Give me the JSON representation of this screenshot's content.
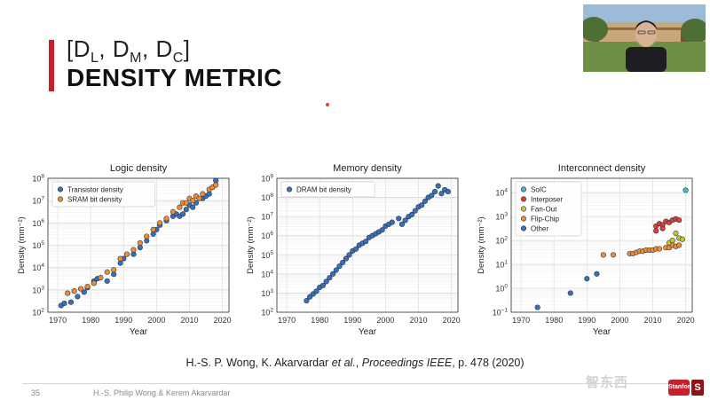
{
  "slide": {
    "title_parts": {
      "d1": "D",
      "s1": "L",
      "d2": "D",
      "s2": "M",
      "d3": "D",
      "s3": "C"
    },
    "title_main": "DENSITY METRIC",
    "citation": {
      "prefix": "H.-S. P. Wong, K. Akarvardar ",
      "etal": "et al.",
      "mid": ", ",
      "journal": "Proceedings IEEE",
      "suffix": ", p. 478 (2020)"
    },
    "footer": {
      "page": "35",
      "authors": "H.-S. Philip Wong & Kerem Akarvardar"
    },
    "watermark": {
      "text": "智东西",
      "badge": "Stanford",
      "letter": "S"
    }
  },
  "colors": {
    "accent": "#c8202a",
    "blue": "#3b70b4",
    "orange": "#ef8c34",
    "red": "#d84038",
    "yellow": "#c9c52f",
    "cyan": "#45b9cc"
  },
  "chart_data": [
    {
      "type": "scatter",
      "title": "Logic density",
      "xlabel": "Year",
      "ylabel": "Density (mm⁻²)",
      "log_y": true,
      "xlim": [
        1967,
        2022
      ],
      "ylim_exp": [
        2,
        8
      ],
      "xticks": [
        1970,
        1980,
        1990,
        2000,
        2010,
        2020
      ],
      "yticks": [
        {
          "base": "10",
          "exp": "2"
        },
        {
          "base": "10",
          "exp": "3"
        },
        {
          "base": "10",
          "exp": "4"
        },
        {
          "base": "10",
          "exp": "5"
        },
        {
          "base": "10",
          "exp": "6"
        },
        {
          "base": "10",
          "exp": "7"
        },
        {
          "base": "10",
          "exp": "8"
        }
      ],
      "legend_position": "top-left",
      "series": [
        {
          "name": "Transistor density",
          "color": "#3b70b4",
          "points": [
            [
              1971,
              2.3
            ],
            [
              1972,
              2.4
            ],
            [
              1974,
              2.45
            ],
            [
              1976,
              2.7
            ],
            [
              1978,
              2.9
            ],
            [
              1979,
              3.1
            ],
            [
              1981,
              3.4
            ],
            [
              1982,
              3.5
            ],
            [
              1985,
              3.4
            ],
            [
              1987,
              3.7
            ],
            [
              1989,
              4.2
            ],
            [
              1990,
              4.4
            ],
            [
              1993,
              4.6
            ],
            [
              1995,
              4.9
            ],
            [
              1997,
              5.2
            ],
            [
              1999,
              5.5
            ],
            [
              2000,
              5.7
            ],
            [
              2001,
              5.9
            ],
            [
              2003,
              6.1
            ],
            [
              2005,
              6.3
            ],
            [
              2006,
              6.4
            ],
            [
              2007,
              6.3
            ],
            [
              2008,
              6.4
            ],
            [
              2009,
              6.6
            ],
            [
              2010,
              6.8
            ],
            [
              2011,
              6.7
            ],
            [
              2012,
              6.9
            ],
            [
              2014,
              7.1
            ],
            [
              2015,
              7.2
            ],
            [
              2016,
              7.3
            ],
            [
              2017,
              7.6
            ],
            [
              2018,
              7.9
            ]
          ]
        },
        {
          "name": "SRAM bit density",
          "color": "#ef8c34",
          "points": [
            [
              1973,
              2.85
            ],
            [
              1975,
              2.95
            ],
            [
              1977,
              3.05
            ],
            [
              1979,
              3.15
            ],
            [
              1981,
              3.3
            ],
            [
              1983,
              3.55
            ],
            [
              1985,
              3.8
            ],
            [
              1987,
              3.9
            ],
            [
              1989,
              4.4
            ],
            [
              1991,
              4.6
            ],
            [
              1993,
              4.8
            ],
            [
              1995,
              5.1
            ],
            [
              1997,
              5.4
            ],
            [
              1999,
              5.7
            ],
            [
              2001,
              6.0
            ],
            [
              2003,
              6.2
            ],
            [
              2005,
              6.5
            ],
            [
              2007,
              6.7
            ],
            [
              2008,
              6.9
            ],
            [
              2009,
              6.9
            ],
            [
              2010,
              7.1
            ],
            [
              2011,
              7.0
            ],
            [
              2012,
              7.2
            ],
            [
              2013,
              7.1
            ],
            [
              2014,
              7.3
            ],
            [
              2016,
              7.5
            ],
            [
              2017,
              7.6
            ],
            [
              2018,
              7.7
            ]
          ]
        }
      ]
    },
    {
      "type": "scatter",
      "title": "Memory density",
      "xlabel": "Year",
      "ylabel": "Density (mm⁻²)",
      "log_y": true,
      "xlim": [
        1967,
        2022
      ],
      "ylim_exp": [
        2,
        9
      ],
      "xticks": [
        1970,
        1980,
        1990,
        2000,
        2010,
        2020
      ],
      "yticks": [
        {
          "base": "10",
          "exp": "2"
        },
        {
          "base": "10",
          "exp": "3"
        },
        {
          "base": "10",
          "exp": "4"
        },
        {
          "base": "10",
          "exp": "5"
        },
        {
          "base": "10",
          "exp": "6"
        },
        {
          "base": "10",
          "exp": "7"
        },
        {
          "base": "10",
          "exp": "8"
        },
        {
          "base": "10",
          "exp": "9"
        }
      ],
      "legend_position": "top-left",
      "series": [
        {
          "name": "DRAM bit density",
          "color": "#3b70b4",
          "points": [
            [
              1976,
              2.6
            ],
            [
              1977,
              2.8
            ],
            [
              1978,
              2.95
            ],
            [
              1979,
              3.1
            ],
            [
              1980,
              3.3
            ],
            [
              1981,
              3.4
            ],
            [
              1982,
              3.6
            ],
            [
              1983,
              3.8
            ],
            [
              1984,
              4.0
            ],
            [
              1985,
              4.2
            ],
            [
              1986,
              4.4
            ],
            [
              1987,
              4.6
            ],
            [
              1988,
              4.8
            ],
            [
              1989,
              5.0
            ],
            [
              1990,
              5.2
            ],
            [
              1991,
              5.3
            ],
            [
              1992,
              5.5
            ],
            [
              1993,
              5.6
            ],
            [
              1994,
              5.7
            ],
            [
              1995,
              5.9
            ],
            [
              1996,
              6.0
            ],
            [
              1997,
              6.1
            ],
            [
              1998,
              6.2
            ],
            [
              1999,
              6.3
            ],
            [
              2000,
              6.5
            ],
            [
              2001,
              6.6
            ],
            [
              2002,
              6.7
            ],
            [
              2004,
              6.9
            ],
            [
              2005,
              6.6
            ],
            [
              2006,
              6.8
            ],
            [
              2007,
              7.0
            ],
            [
              2008,
              7.1
            ],
            [
              2009,
              7.3
            ],
            [
              2010,
              7.5
            ],
            [
              2011,
              7.6
            ],
            [
              2012,
              7.8
            ],
            [
              2013,
              8.0
            ],
            [
              2014,
              8.1
            ],
            [
              2015,
              8.3
            ],
            [
              2016,
              8.6
            ],
            [
              2017,
              8.2
            ],
            [
              2018,
              8.4
            ],
            [
              2019,
              8.3
            ]
          ]
        }
      ]
    },
    {
      "type": "scatter",
      "title": "Interconnect density",
      "xlabel": "Year",
      "ylabel": "Density (mm⁻²)",
      "log_y": true,
      "xlim": [
        1967,
        2022
      ],
      "ylim_exp": [
        -1,
        4.6
      ],
      "xticks": [
        1970,
        1980,
        1990,
        2000,
        2010,
        2020
      ],
      "yticks": [
        {
          "base": "10",
          "exp": "−1"
        },
        {
          "base": "10",
          "exp": "0"
        },
        {
          "base": "10",
          "exp": "1"
        },
        {
          "base": "10",
          "exp": "2"
        },
        {
          "base": "10",
          "exp": "3"
        },
        {
          "base": "10",
          "exp": "4"
        }
      ],
      "legend_position": "top-left",
      "series": [
        {
          "name": "SoIC",
          "color": "#45b9cc",
          "points": [
            [
              2020,
              4.1
            ]
          ]
        },
        {
          "name": "Interposer",
          "color": "#d84038",
          "points": [
            [
              2011,
              2.6
            ],
            [
              2012,
              2.7
            ],
            [
              2013,
              2.65
            ],
            [
              2014,
              2.8
            ],
            [
              2015,
              2.75
            ],
            [
              2016,
              2.85
            ],
            [
              2017,
              2.9
            ],
            [
              2018,
              2.85
            ],
            [
              2011,
              2.4
            ],
            [
              2013,
              2.5
            ]
          ]
        },
        {
          "name": "Fan-Out",
          "color": "#c9c52f",
          "points": [
            [
              2015,
              1.9
            ],
            [
              2016,
              2.0
            ],
            [
              2017,
              2.3
            ],
            [
              2018,
              2.1
            ],
            [
              2019,
              2.05
            ]
          ]
        },
        {
          "name": "Flip-Chip",
          "color": "#ef8c34",
          "points": [
            [
              1995,
              1.4
            ],
            [
              1998,
              1.4
            ],
            [
              2003,
              1.45
            ],
            [
              2004,
              1.45
            ],
            [
              2005,
              1.5
            ],
            [
              2006,
              1.55
            ],
            [
              2007,
              1.55
            ],
            [
              2008,
              1.6
            ],
            [
              2009,
              1.6
            ],
            [
              2010,
              1.6
            ],
            [
              2011,
              1.65
            ],
            [
              2012,
              1.65
            ],
            [
              2014,
              1.7
            ],
            [
              2015,
              1.7
            ],
            [
              2016,
              1.8
            ],
            [
              2017,
              1.75
            ],
            [
              2018,
              1.8
            ]
          ]
        },
        {
          "name": "Other",
          "color": "#3b70b4",
          "points": [
            [
              1975,
              -0.8
            ],
            [
              1985,
              -0.2
            ],
            [
              1990,
              0.4
            ],
            [
              1993,
              0.6
            ]
          ]
        }
      ]
    }
  ]
}
